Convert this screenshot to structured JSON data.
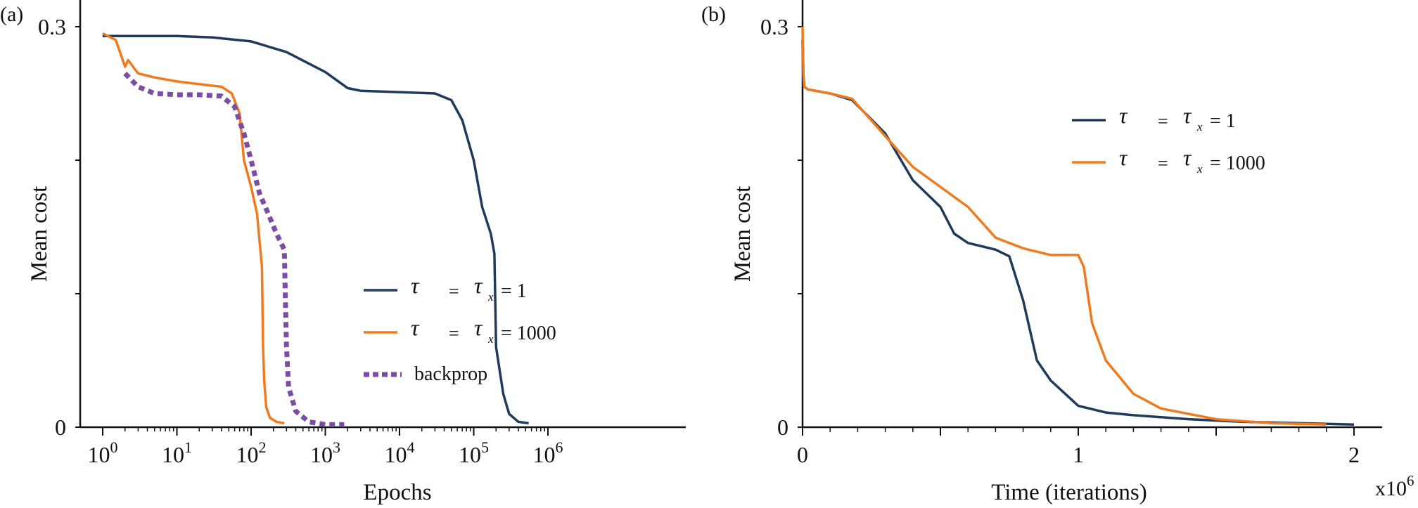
{
  "colors": {
    "series1": "#1f3a5a",
    "series2": "#f07a1e",
    "backprop": "#7b4ea3",
    "axis": "#111111"
  },
  "panels": [
    {
      "tag": "(a)"
    },
    {
      "tag": "(b)"
    }
  ],
  "chart_data": [
    {
      "type": "line",
      "xlabel": "Epochs",
      "ylabel": "Mean cost",
      "xscale": "log",
      "xlim": [
        1,
        1500000
      ],
      "ylim": [
        0,
        0.3
      ],
      "yticks": [
        "0",
        "0.3"
      ],
      "xticks": [
        "10^0",
        "10^1",
        "10^2",
        "10^3",
        "10^4",
        "10^5",
        "10^6"
      ],
      "legend": {
        "placement": "center-right",
        "entries": [
          {
            "tau": "τ",
            "eq": "=",
            "taux": "τ",
            "sub": "x",
            "val": "= 1"
          },
          {
            "tau": "τ",
            "eq": "=",
            "taux": "τ",
            "sub": "x",
            "val": "= 1000"
          },
          {
            "label": "backprop"
          }
        ]
      },
      "series": [
        {
          "key": "s1",
          "x": [
            1,
            3,
            10,
            30,
            100,
            300,
            1000,
            2000,
            3000,
            10000,
            30000,
            50000,
            70000,
            100000,
            130000,
            170000,
            190000,
            200000,
            250000,
            300000,
            400000,
            550000
          ],
          "y": [
            0.293,
            0.293,
            0.293,
            0.292,
            0.289,
            0.281,
            0.266,
            0.254,
            0.252,
            0.251,
            0.25,
            0.245,
            0.23,
            0.2,
            0.165,
            0.145,
            0.13,
            0.06,
            0.025,
            0.01,
            0.004,
            0.003
          ]
        },
        {
          "key": "s2",
          "x": [
            1,
            1.5,
            2,
            2.2,
            3,
            5,
            10,
            20,
            40,
            55,
            70,
            80,
            100,
            120,
            140,
            145,
            150,
            160,
            180,
            220,
            280
          ],
          "y": [
            0.295,
            0.29,
            0.27,
            0.275,
            0.265,
            0.262,
            0.259,
            0.257,
            0.255,
            0.25,
            0.235,
            0.2,
            0.18,
            0.16,
            0.12,
            0.06,
            0.035,
            0.015,
            0.007,
            0.004,
            0.003
          ]
        },
        {
          "key": "bp",
          "x": [
            2,
            3,
            5,
            10,
            20,
            40,
            60,
            80,
            100,
            130,
            170,
            220,
            280,
            300,
            320,
            400,
            600,
            1000,
            1800
          ],
          "y": [
            0.265,
            0.255,
            0.25,
            0.249,
            0.249,
            0.248,
            0.24,
            0.22,
            0.2,
            0.175,
            0.16,
            0.145,
            0.133,
            0.06,
            0.03,
            0.012,
            0.004,
            0.002,
            0.002
          ]
        }
      ]
    },
    {
      "type": "line",
      "xlabel": "Time (iterations)",
      "ylabel": "Mean cost",
      "xlim": [
        0,
        2.1
      ],
      "ylim": [
        0,
        0.3
      ],
      "xticks": [
        "0",
        "1",
        "2"
      ],
      "yticks": [
        "0",
        "0.3"
      ],
      "xmultiplier": "x10",
      "xmultiplier_exp": "6",
      "legend": {
        "placement": "top-right",
        "entries": [
          {
            "tau": "τ",
            "eq": "=",
            "taux": "τ",
            "sub": "x",
            "val": "= 1"
          },
          {
            "tau": "τ",
            "eq": "=",
            "taux": "τ",
            "sub": "x",
            "val": "= 1000"
          }
        ]
      },
      "series": [
        {
          "key": "s1",
          "x": [
            0,
            0.003,
            0.006,
            0.02,
            0.1,
            0.18,
            0.3,
            0.4,
            0.5,
            0.55,
            0.6,
            0.7,
            0.75,
            0.8,
            0.85,
            0.9,
            1.0,
            1.1,
            1.2,
            1.4,
            1.6,
            1.8,
            2.0
          ],
          "y": [
            0.29,
            0.265,
            0.255,
            0.253,
            0.25,
            0.245,
            0.22,
            0.185,
            0.165,
            0.145,
            0.138,
            0.133,
            0.128,
            0.095,
            0.05,
            0.035,
            0.016,
            0.011,
            0.009,
            0.006,
            0.004,
            0.003,
            0.002
          ]
        },
        {
          "key": "s2",
          "x": [
            0,
            0.003,
            0.006,
            0.02,
            0.1,
            0.18,
            0.3,
            0.4,
            0.5,
            0.6,
            0.7,
            0.8,
            0.9,
            1.0,
            1.02,
            1.05,
            1.1,
            1.2,
            1.3,
            1.5,
            1.7,
            1.9
          ],
          "y": [
            0.3,
            0.265,
            0.255,
            0.253,
            0.25,
            0.246,
            0.218,
            0.195,
            0.18,
            0.165,
            0.142,
            0.134,
            0.129,
            0.129,
            0.12,
            0.078,
            0.05,
            0.025,
            0.014,
            0.006,
            0.003,
            0.002
          ]
        }
      ]
    }
  ]
}
